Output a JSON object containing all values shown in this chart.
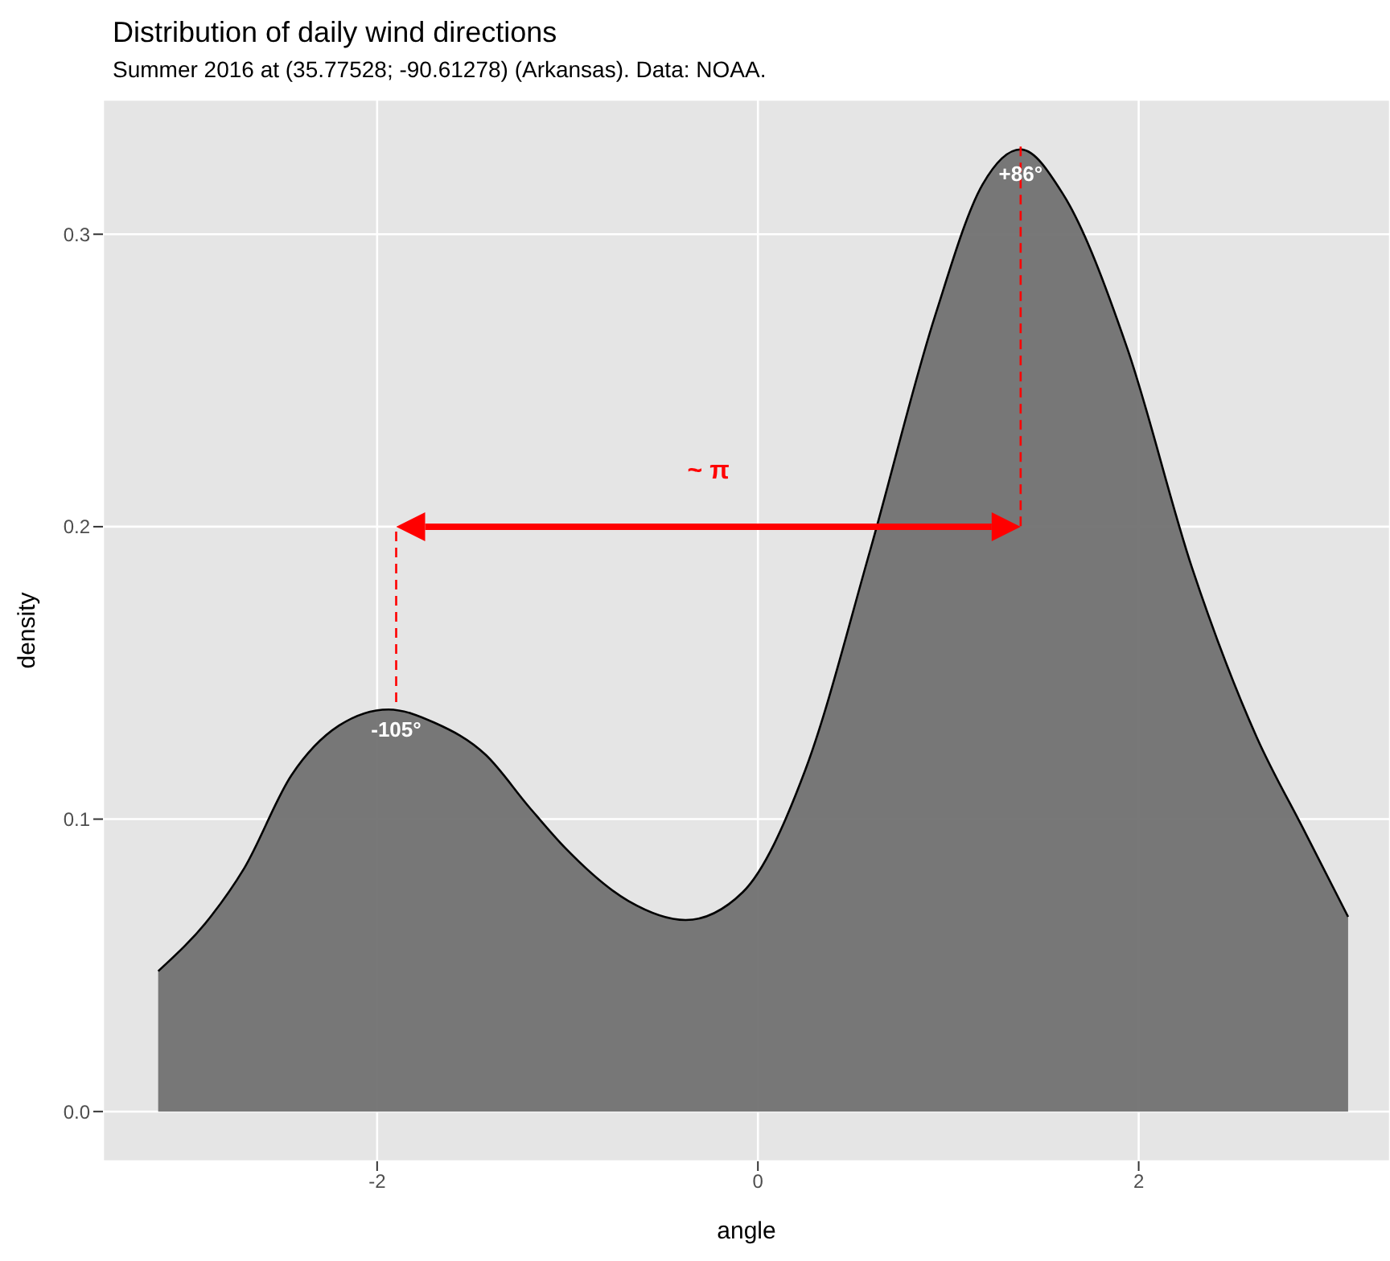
{
  "chart_data": {
    "type": "area",
    "title": "Distribution of daily wind directions",
    "subtitle": "Summer 2016 at (35.77528; -90.61278) (Arkansas). Data: NOAA.",
    "xlabel": "angle",
    "ylabel": "density",
    "x": [
      -3.15,
      -2.87,
      -2.7,
      -2.45,
      -2.2,
      -1.94,
      -1.7,
      -1.43,
      -1.2,
      -1.01,
      -0.68,
      -0.38,
      -0.08,
      0.25,
      0.59,
      0.93,
      1.18,
      1.38,
      1.6,
      1.94,
      2.28,
      2.62,
      2.87,
      3.1
    ],
    "series": [
      {
        "color": "#717171",
        "values": [
          0.048,
          0.067,
          0.083,
          0.115,
          0.132,
          0.1375,
          0.133,
          0.122,
          0.104,
          0.09,
          0.072,
          0.0655,
          0.075,
          0.117,
          0.192,
          0.272,
          0.317,
          0.329,
          0.314,
          0.261,
          0.186,
          0.128,
          0.096,
          0.0666
        ]
      }
    ],
    "xlim": [
      -3.44,
      3.32
    ],
    "ylim": [
      -0.017,
      0.346
    ],
    "xticks": [
      -2,
      0,
      2
    ],
    "yticks": [
      {
        "value": 0,
        "label": "0.0"
      },
      0.1,
      0.2,
      0.3
    ],
    "grid": true,
    "ref_lines": [
      {
        "axis": "x",
        "value": -1.9,
        "label": null,
        "color": "#ff0000",
        "line_style": "dashed"
      },
      {
        "axis": "x",
        "value": 1.38,
        "label": null,
        "color": "#ff0000",
        "line_style": "dashed"
      },
      {
        "axis": "y",
        "value": 0.2,
        "label": "~ π",
        "color": "#ff0000",
        "line_style": "solid"
      }
    ],
    "annotations": [
      {
        "text": "-105°",
        "x": -1.9,
        "y": 0.14
      },
      {
        "text": "+86°",
        "x": 1.38,
        "y": 0.33
      }
    ]
  }
}
